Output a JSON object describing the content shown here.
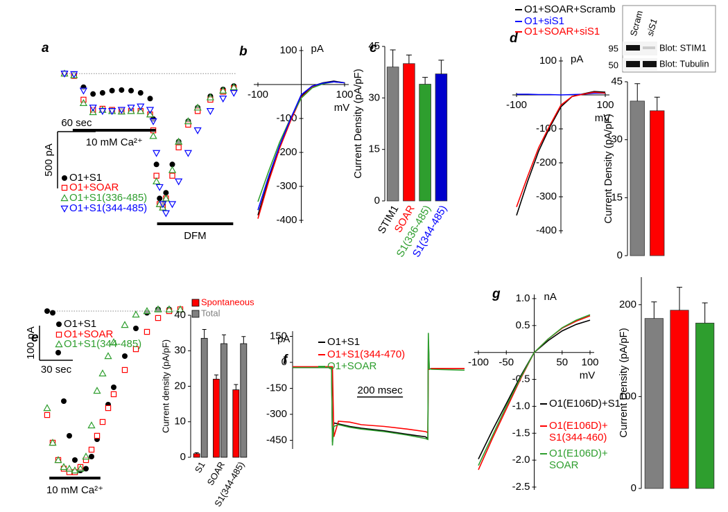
{
  "chart_data": [
    {
      "type": "line",
      "label": "a",
      "xlim": [
        0,
        270
      ],
      "ylim": [
        -1250,
        50
      ],
      "baseline": 0,
      "x": [
        0,
        15,
        30,
        45,
        60,
        75,
        90,
        105,
        120,
        135,
        140,
        145,
        150,
        155,
        160,
        170,
        180,
        195,
        210,
        230,
        250,
        267
      ],
      "series": [
        {
          "name": "O1+S1",
          "color": "#000000",
          "marker": "circle",
          "values": [
            0,
            -10,
            -120,
            -180,
            -170,
            -150,
            -145,
            -150,
            -170,
            -220,
            -400,
            -800,
            -1100,
            -1150,
            -1050,
            -800,
            -600,
            -420,
            -300,
            -200,
            -140,
            -110
          ]
        },
        {
          "name": "O1+SOAR",
          "color": "#ff0000",
          "marker": "square",
          "values": [
            0,
            -20,
            -230,
            -320,
            -310,
            -320,
            -330,
            -330,
            -330,
            -360,
            -500,
            -900,
            -1150,
            -1180,
            -1100,
            -900,
            -650,
            -450,
            -330,
            -230,
            -160,
            -130
          ]
        },
        {
          "name": "O1+S1(336-485)",
          "color": "#2e9e2e",
          "marker": "triangle",
          "values": [
            0,
            -15,
            -260,
            -340,
            -320,
            -330,
            -335,
            -330,
            -330,
            -360,
            -550,
            -950,
            -1150,
            -1180,
            -1100,
            -850,
            -600,
            -420,
            -300,
            -210,
            -150,
            -120
          ]
        },
        {
          "name": "O1+S1(344-485)",
          "color": "#0000ff",
          "marker": "triangle-down",
          "values": [
            0,
            -5,
            -150,
            -300,
            -330,
            -330,
            -320,
            -300,
            -290,
            -320,
            -420,
            -700,
            -1000,
            -1150,
            -1230,
            -1150,
            -950,
            -700,
            -500,
            -330,
            -220,
            -170
          ]
        }
      ],
      "scale_bars": [
        {
          "label": "500 pA",
          "value": 500,
          "axis": "y"
        },
        {
          "label": "60 sec",
          "value": 60,
          "axis": "x"
        }
      ],
      "annotations": [
        {
          "text": "10 mM Ca²⁺",
          "xrange": [
            13,
            144
          ]
        },
        {
          "text": "DFM",
          "xrange": [
            146,
            266
          ]
        }
      ]
    },
    {
      "type": "iv",
      "label": "b",
      "xlabel": "mV",
      "ylabel": "pA",
      "xlim": [
        -100,
        100
      ],
      "ylim": [
        -400,
        100
      ],
      "xticks": [
        -100,
        100
      ],
      "yticks": [
        100,
        -100,
        -200,
        -300,
        -400
      ],
      "x": [
        -100,
        -75,
        -50,
        -25,
        0,
        25,
        50,
        75,
        100
      ],
      "series": [
        {
          "color": "#000000",
          "values": [
            -385,
            -280,
            -185,
            -105,
            -35,
            -5,
            5,
            10,
            5
          ]
        },
        {
          "color": "#ff0000",
          "values": [
            -395,
            -285,
            -188,
            -108,
            -38,
            -8,
            3,
            8,
            5
          ]
        },
        {
          "color": "#2e9e2e",
          "values": [
            -345,
            -255,
            -170,
            -100,
            -40,
            -10,
            2,
            8,
            5
          ]
        },
        {
          "color": "#0000ff",
          "values": [
            -370,
            -270,
            -180,
            -102,
            -30,
            -5,
            4,
            8,
            5
          ]
        }
      ]
    },
    {
      "type": "bar",
      "label": "c",
      "ylabel": "Current Density (pA/pF)",
      "ylim": [
        0,
        45
      ],
      "yticks": [
        0,
        15,
        30,
        45
      ],
      "categories": [
        "STIM1",
        "SOAR",
        "S1(336-485)",
        "S1(344-485)"
      ],
      "category_colors": [
        "#000000",
        "#ff0000",
        "#2e9e2e",
        "#0000ff"
      ],
      "values": [
        39,
        40,
        34,
        37
      ],
      "errors": [
        5,
        2.5,
        2,
        4
      ],
      "colors": [
        "#808080",
        "#ff0000",
        "#2e9e2e",
        "#0000cc"
      ]
    },
    {
      "type": "iv",
      "label": "d",
      "xlabel": "mV",
      "ylabel": "pA",
      "xlim": [
        -100,
        100
      ],
      "ylim": [
        -400,
        100
      ],
      "xticks": [
        -100,
        100
      ],
      "yticks": [
        100,
        -100,
        -200,
        -300,
        -400
      ],
      "x": [
        -100,
        -75,
        -50,
        -25,
        0,
        25,
        50,
        75,
        100
      ],
      "series": [
        {
          "name": "O1+SOAR+Scramb",
          "color": "#000000",
          "values": [
            -355,
            -255,
            -165,
            -95,
            -35,
            -5,
            3,
            10,
            8
          ]
        },
        {
          "name": "O1+siS1",
          "color": "#0000ff",
          "values": [
            2,
            2,
            1,
            1,
            0,
            1,
            2,
            5,
            5
          ]
        },
        {
          "name": "O1+SOAR+siS1",
          "color": "#ff0000",
          "values": [
            -330,
            -240,
            -155,
            -90,
            -30,
            -5,
            2,
            8,
            5
          ]
        }
      ]
    },
    {
      "type": "bar",
      "ylabel": "Current Density (pA/pF)",
      "ylim": [
        0,
        45
      ],
      "yticks": [
        0,
        15,
        30,
        45
      ],
      "values": [
        40,
        37.5
      ],
      "errors": [
        4.5,
        3.5
      ],
      "colors": [
        "#808080",
        "#ff0000"
      ]
    },
    {
      "type": "line",
      "label": "e",
      "xlim": [
        0,
        120
      ],
      "ylim": [
        -480,
        20
      ],
      "baseline": 0,
      "x": [
        0,
        5,
        10,
        15,
        20,
        25,
        30,
        35,
        40,
        45,
        50,
        55,
        60,
        70,
        80,
        90,
        100,
        110,
        120
      ],
      "series": [
        {
          "name": "O1+S1",
          "color": "#000000",
          "marker": "circle",
          "values": [
            0,
            -5,
            -120,
            -260,
            -360,
            -430,
            -460,
            -455,
            -420,
            -370,
            -320,
            -270,
            -220,
            -130,
            -50,
            -5,
            5,
            5,
            5
          ]
        },
        {
          "name": "O1+SOAR",
          "color": "#ff0000",
          "marker": "square",
          "values": [
            -300,
            -380,
            -430,
            -455,
            -465,
            -465,
            -450,
            -430,
            -400,
            -360,
            -320,
            -280,
            -240,
            -170,
            -110,
            -60,
            -20,
            0,
            5
          ]
        },
        {
          "name": "O1+S1(344-485)",
          "color": "#2e9e2e",
          "marker": "triangle",
          "values": [
            -280,
            -380,
            -430,
            -450,
            -455,
            -460,
            -455,
            -420,
            -330,
            -230,
            -180,
            -130,
            -90,
            -40,
            -10,
            0,
            5,
            5,
            5
          ]
        }
      ],
      "scale_bars": [
        {
          "label": "100 pA",
          "value": 100,
          "axis": "y"
        },
        {
          "label": "30 sec",
          "value": 30,
          "axis": "x"
        }
      ],
      "annotations": [
        {
          "text": "10 mM Ca²⁺",
          "xrange": [
            2,
            48
          ]
        }
      ]
    },
    {
      "type": "grouped_bar",
      "ylabel": "Current density (pA/pF)",
      "ylim": [
        0,
        40
      ],
      "yticks": [
        0,
        10,
        20,
        30,
        40
      ],
      "categories": [
        "S1",
        "SOAR",
        "S1(344-485)"
      ],
      "series": [
        {
          "name": "Spontaneous",
          "color": "#ff0000",
          "values": [
            1,
            22,
            19
          ],
          "errors": [
            0.3,
            1.2,
            1.5
          ]
        },
        {
          "name": "Total",
          "color": "#808080",
          "values": [
            33.5,
            32,
            32
          ],
          "errors": [
            2.5,
            2.5,
            2
          ]
        }
      ]
    },
    {
      "type": "line",
      "label": "f",
      "ylabel": "pA",
      "xlim": [
        0,
        750
      ],
      "ylim": [
        -500,
        180
      ],
      "yticks": [
        150,
        0,
        -150,
        -300,
        -450
      ],
      "x": [
        0,
        170,
        174,
        180,
        200,
        250,
        300,
        400,
        500,
        580,
        590,
        592,
        596,
        605,
        750
      ],
      "series": [
        {
          "name": "O1+S1",
          "color": "#000000",
          "values": [
            -30,
            -30,
            -460,
            -350,
            -355,
            -370,
            -380,
            -395,
            -415,
            -430,
            -440,
            130,
            -40,
            -35,
            -35
          ]
        },
        {
          "name": "O1+S1(344-470)",
          "color": "#ff0000",
          "values": [
            -25,
            -25,
            -25,
            -430,
            -340,
            -345,
            -360,
            -370,
            -385,
            -400,
            -405,
            80,
            -40,
            -35,
            -35
          ]
        },
        {
          "name": "O1+SOAR",
          "color": "#2e9e2e",
          "values": [
            -30,
            -30,
            -480,
            -370,
            -360,
            -375,
            -385,
            -400,
            -420,
            -440,
            -445,
            170,
            -35,
            -40,
            -45
          ]
        }
      ],
      "scale_bars": [
        {
          "label": "200 msec",
          "value": 200,
          "axis": "x"
        }
      ]
    },
    {
      "type": "iv",
      "label": "g",
      "xlabel": "mV",
      "ylabel": "nA",
      "xlim": [
        -100,
        100
      ],
      "ylim": [
        -2.5,
        1.0
      ],
      "xticks": [
        -100,
        -50,
        50,
        100
      ],
      "yticks": [
        {
          "value": 1,
          "label": "1.0"
        },
        0.5,
        -0.5,
        {
          "value": -1,
          "label": "-1.0"
        },
        -1.5,
        {
          "value": -2,
          "label": "-2.0"
        },
        -2.5
      ],
      "x": [
        -100,
        -75,
        -50,
        -25,
        0,
        25,
        50,
        75,
        100
      ],
      "series": [
        {
          "name": "O1(E106D)+S1",
          "color": "#000000",
          "values": [
            -1.98,
            -1.45,
            -0.95,
            -0.45,
            0,
            0.22,
            0.4,
            0.52,
            0.6
          ]
        },
        {
          "name": "O1(E106D)+\nS1(344-460)",
          "color": "#ff0000",
          "values": [
            -2.18,
            -1.6,
            -1.05,
            -0.5,
            0,
            0.25,
            0.45,
            0.58,
            0.68
          ]
        },
        {
          "name": "O1(E106D)+\nSOAR",
          "color": "#2e9e2e",
          "values": [
            -2.1,
            -1.55,
            -1.0,
            -0.48,
            0,
            0.25,
            0.46,
            0.6,
            0.7
          ]
        }
      ]
    },
    {
      "type": "bar",
      "ylabel": "Current Density (pA/pF)",
      "ylim": [
        0,
        230
      ],
      "yticks": [
        0,
        100,
        200
      ],
      "values": [
        185,
        194,
        180
      ],
      "errors": [
        18,
        25,
        22
      ],
      "colors": [
        "#808080",
        "#ff0000",
        "#2e9e2e"
      ]
    }
  ],
  "blot": {
    "lanes": [
      "Scram",
      "siS1"
    ],
    "markers": [
      95,
      50
    ],
    "bands": [
      "Blot: STIM1",
      "Blot: Tubulin"
    ]
  }
}
